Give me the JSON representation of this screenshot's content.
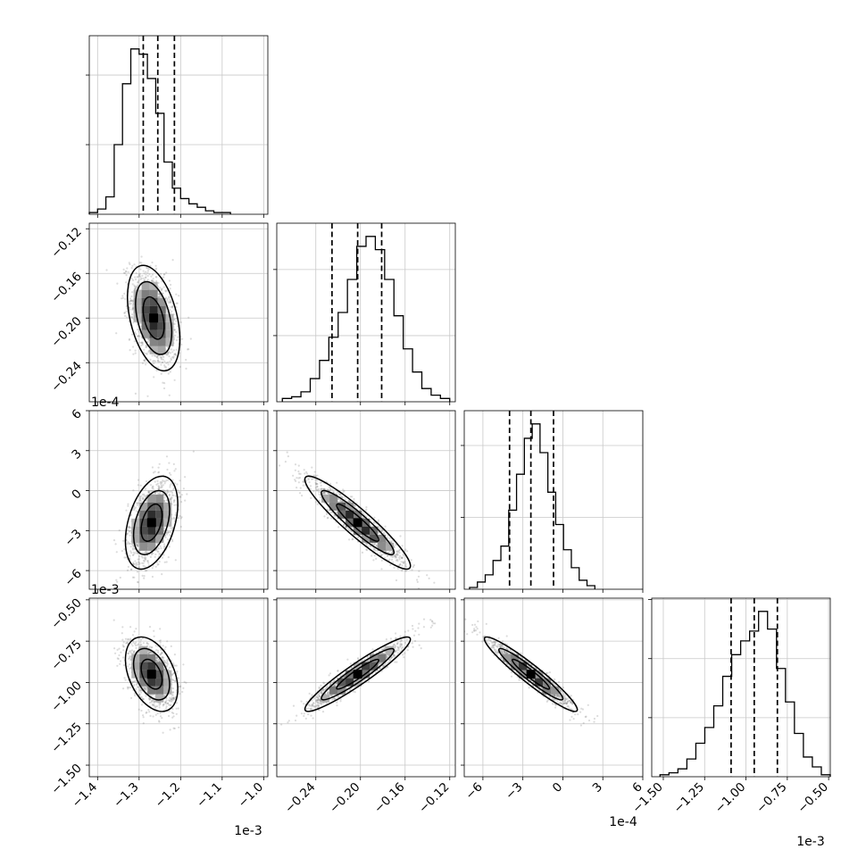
{
  "chart_data": {
    "type": "corner",
    "n_params": 4,
    "grid": true,
    "params": [
      {
        "index": 0,
        "offset_label": "1e-3",
        "range": [
          -1.42,
          -0.99
        ],
        "ticks": [
          -1.4,
          -1.3,
          -1.2,
          -1.1,
          -1.0
        ],
        "tick_labels": [
          "−1.4",
          "−1.3",
          "−1.2",
          "−1.1",
          "−1.0"
        ],
        "quantiles": [
          -1.29,
          -1.255,
          -1.215
        ],
        "histogram": {
          "bin_range": [
            -1.42,
            -1.08
          ],
          "counts": [
            1,
            3,
            10,
            40,
            75,
            95,
            92,
            78,
            58,
            30,
            15,
            9,
            6,
            4,
            2,
            1,
            1
          ]
        }
      },
      {
        "index": 1,
        "offset_label": "1e-4",
        "range": [
          -0.275,
          -0.115
        ],
        "ticks": [
          -0.24,
          -0.2,
          -0.16,
          -0.12
        ],
        "tick_labels": [
          "−0.24",
          "−0.20",
          "−0.16",
          "−0.12"
        ],
        "quantiles": [
          -0.2255,
          -0.2025,
          -0.181
        ],
        "histogram": {
          "bin_range": [
            -0.27,
            -0.12
          ],
          "counts": [
            2,
            3,
            6,
            14,
            25,
            39,
            54,
            74,
            94,
            100,
            92,
            74,
            52,
            32,
            18,
            8,
            4,
            2
          ]
        }
      },
      {
        "index": 2,
        "offset_label": "1e-4",
        "range": [
          -7.4,
          6.0
        ],
        "ticks": [
          -6,
          -3,
          0,
          3,
          6
        ],
        "tick_labels": [
          "−6",
          "−3",
          "0",
          "3",
          "6"
        ],
        "quantiles": [
          -4.0,
          -2.4,
          -0.7
        ],
        "histogram": {
          "bin_range": [
            -7.0,
            2.4
          ],
          "counts": [
            1,
            4,
            8,
            16,
            24,
            44,
            64,
            84,
            92,
            76,
            54,
            36,
            22,
            12,
            5,
            2
          ]
        }
      },
      {
        "index": 3,
        "offset_label": "1e-3",
        "range": [
          -1.57,
          -0.49
        ],
        "ticks": [
          -1.5,
          -1.25,
          -1.0,
          -0.75,
          -0.5
        ],
        "tick_labels": [
          "−1.50",
          "−1.25",
          "−1.00",
          "−0.75",
          "−0.50"
        ],
        "quantiles": [
          -1.09,
          -0.95,
          -0.81
        ],
        "histogram": {
          "bin_range": [
            -1.52,
            -0.49
          ],
          "counts": [
            1,
            2,
            4,
            9,
            17,
            25,
            36,
            51,
            62,
            69,
            74,
            84,
            75,
            55,
            38,
            22,
            10,
            5,
            1
          ]
        }
      }
    ],
    "pairs": [
      {
        "x": 0,
        "y": 1,
        "mean": [
          -1.265,
          -0.2
        ],
        "sd": [
          0.028,
          0.021
        ],
        "corr": -0.4
      },
      {
        "x": 0,
        "y": 2,
        "mean": [
          -1.27,
          -2.4
        ],
        "sd": [
          0.028,
          1.55
        ],
        "corr": 0.4
      },
      {
        "x": 1,
        "y": 2,
        "mean": [
          -0.2025,
          -2.4
        ],
        "sd": [
          0.021,
          1.55
        ],
        "corr": -0.93
      },
      {
        "x": 0,
        "y": 3,
        "mean": [
          -1.27,
          -0.95
        ],
        "sd": [
          0.028,
          0.1
        ],
        "corr": -0.4
      },
      {
        "x": 1,
        "y": 3,
        "mean": [
          -0.2025,
          -0.95
        ],
        "sd": [
          0.021,
          0.1
        ],
        "corr": 0.94
      },
      {
        "x": 2,
        "y": 3,
        "mean": [
          -2.4,
          -0.95
        ],
        "sd": [
          1.55,
          0.1
        ],
        "corr": -0.95
      }
    ]
  }
}
